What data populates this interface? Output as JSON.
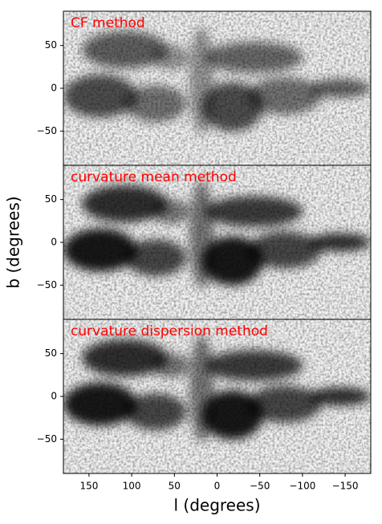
{
  "chart_data": [
    {
      "type": "image",
      "title": "CF method",
      "xlim": [
        180,
        -180
      ],
      "ylim": [
        -90,
        90
      ],
      "yticks": [
        {
          "value": -50,
          "label": "−50"
        },
        0,
        50
      ]
    },
    {
      "type": "image",
      "title": "curvature mean method",
      "xlim": [
        180,
        -180
      ],
      "ylim": [
        -90,
        90
      ],
      "yticks": [
        {
          "value": -50,
          "label": "−50"
        },
        0,
        50
      ],
      "ylabel": "b (degrees)"
    },
    {
      "type": "image",
      "title": "curvature dispersion method",
      "xlim": [
        180,
        -180
      ],
      "ylim": [
        -90,
        90
      ],
      "yticks": [
        {
          "value": -50,
          "label": "−50"
        },
        0,
        50
      ],
      "xticks": [
        150,
        100,
        50,
        0,
        {
          "value": -50,
          "label": "−50"
        },
        {
          "value": -100,
          "label": "−100"
        },
        {
          "value": -150,
          "label": "−150"
        }
      ],
      "xlabel": "l (degrees)"
    }
  ]
}
